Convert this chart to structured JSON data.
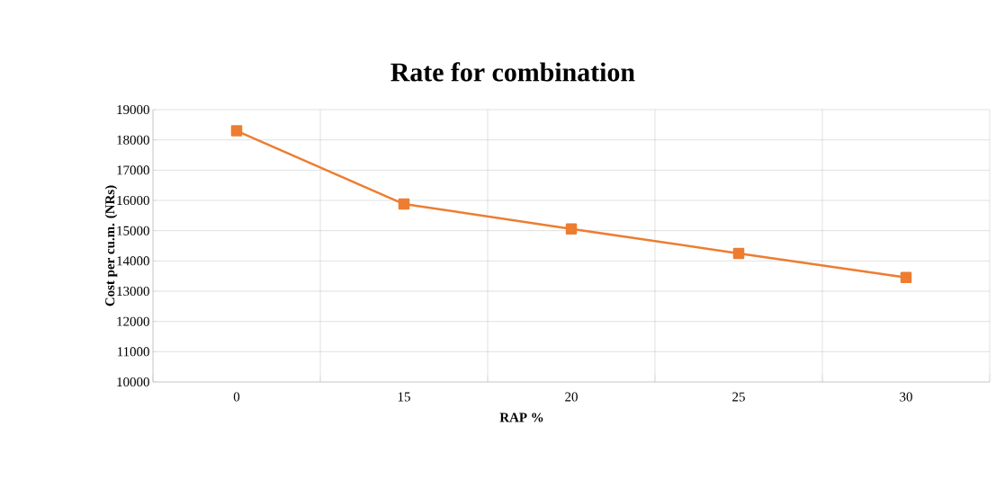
{
  "chart_data": {
    "type": "line",
    "title": "Rate for combination",
    "xlabel": "RAP %",
    "ylabel": "Cost per cu.m. (NRs)",
    "categories": [
      "0",
      "15",
      "20",
      "25",
      "30"
    ],
    "series": [
      {
        "color": "#ed7d31",
        "values": [
          18300,
          15880,
          15060,
          14250,
          13450
        ]
      }
    ],
    "ylim": [
      10000,
      19000
    ],
    "yticks": [
      10000,
      11000,
      12000,
      13000,
      14000,
      15000,
      16000,
      17000,
      18000,
      19000
    ],
    "grid": true,
    "marker": "square",
    "line_style": "solid"
  }
}
